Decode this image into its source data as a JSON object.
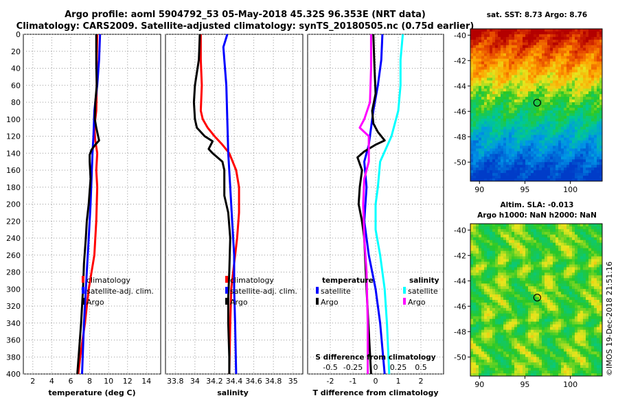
{
  "header": {
    "title_line1": "Argo profile: aoml 5904792_53 05-May-2018 45.32S 96.353E (NRT data)",
    "title_line2": "Climatology: CARS2009. Satellite-adjusted climatology: synTS_20180505.nc (0.75d earlier)"
  },
  "colors": {
    "climatology": "#ff0000",
    "satellite": "#0000ff",
    "argo": "#000000",
    "salinity_clim": "#00ffff",
    "salinity_argo": "#ff00ff"
  },
  "chart_data": [
    {
      "type": "line",
      "title": "",
      "xlabel": "temperature (deg C)",
      "ylabel": "",
      "xlim": [
        1,
        15.5
      ],
      "ylim": [
        400,
        0
      ],
      "xticks": [
        "2",
        "4",
        "6",
        "8",
        "10",
        "12",
        "14"
      ],
      "yticks": [
        "0",
        "20",
        "40",
        "60",
        "80",
        "100",
        "120",
        "140",
        "160",
        "180",
        "200",
        "220",
        "240",
        "260",
        "280",
        "300",
        "320",
        "340",
        "360",
        "380",
        "400"
      ],
      "series": [
        {
          "name": "climatology",
          "color": "#ff0000",
          "points": [
            [
              8.8,
              0
            ],
            [
              8.75,
              30
            ],
            [
              8.75,
              60
            ],
            [
              8.7,
              90
            ],
            [
              8.5,
              110
            ],
            [
              8.6,
              125
            ],
            [
              8.8,
              140
            ],
            [
              8.7,
              160
            ],
            [
              8.8,
              180
            ],
            [
              8.7,
              220
            ],
            [
              8.5,
              260
            ],
            [
              7.9,
              300
            ],
            [
              7.5,
              340
            ],
            [
              7.0,
              380
            ],
            [
              6.8,
              400
            ]
          ]
        },
        {
          "name": "satellite-adj. clim.",
          "color": "#0000ff",
          "points": [
            [
              9.1,
              0
            ],
            [
              9.0,
              30
            ],
            [
              8.8,
              60
            ],
            [
              8.5,
              90
            ],
            [
              8.4,
              120
            ],
            [
              8.3,
              140
            ],
            [
              8.2,
              170
            ],
            [
              8.1,
              200
            ],
            [
              7.9,
              240
            ],
            [
              7.6,
              300
            ],
            [
              7.4,
              340
            ],
            [
              7.2,
              400
            ]
          ]
        },
        {
          "name": "Argo",
          "color": "#000000",
          "points": [
            [
              8.7,
              0
            ],
            [
              8.7,
              35
            ],
            [
              8.75,
              60
            ],
            [
              8.6,
              80
            ],
            [
              8.55,
              100
            ],
            [
              8.7,
              110
            ],
            [
              9.0,
              125
            ],
            [
              8.6,
              130
            ],
            [
              8.2,
              136
            ],
            [
              8.0,
              142
            ],
            [
              8.0,
              150
            ],
            [
              8.1,
              170
            ],
            [
              7.9,
              200
            ],
            [
              7.7,
              220
            ],
            [
              7.6,
              240
            ],
            [
              7.4,
              270
            ],
            [
              7.3,
              300
            ],
            [
              7.1,
              340
            ],
            [
              6.9,
              370
            ],
            [
              6.7,
              400
            ]
          ]
        }
      ],
      "legend": [
        "climatology",
        "satellite-adj. clim.",
        "Argo"
      ],
      "legend_position": "lower-right"
    },
    {
      "type": "line",
      "xlabel": "salinity",
      "xlim": [
        33.7,
        35.1
      ],
      "ylim": [
        400,
        0
      ],
      "xticks": [
        "33.8",
        "34",
        "34.2",
        "34.4",
        "34.6",
        "34.8",
        "35"
      ],
      "series": [
        {
          "name": "climatology",
          "color": "#ff0000",
          "points": [
            [
              34.06,
              0
            ],
            [
              34.06,
              30
            ],
            [
              34.07,
              60
            ],
            [
              34.06,
              90
            ],
            [
              34.08,
              100
            ],
            [
              34.13,
              110
            ],
            [
              34.2,
              120
            ],
            [
              34.28,
              130
            ],
            [
              34.35,
              140
            ],
            [
              34.42,
              160
            ],
            [
              34.45,
              180
            ],
            [
              34.45,
              210
            ],
            [
              34.43,
              240
            ],
            [
              34.4,
              270
            ],
            [
              34.37,
              300
            ],
            [
              34.36,
              340
            ],
            [
              34.35,
              400
            ]
          ]
        },
        {
          "name": "satellite-adj. clim.",
          "color": "#0000ff",
          "points": [
            [
              34.33,
              0
            ],
            [
              34.29,
              15
            ],
            [
              34.3,
              30
            ],
            [
              34.32,
              60
            ],
            [
              34.33,
              100
            ],
            [
              34.34,
              140
            ],
            [
              34.36,
              180
            ],
            [
              34.38,
              220
            ],
            [
              34.4,
              260
            ],
            [
              34.4,
              300
            ],
            [
              34.41,
              340
            ],
            [
              34.42,
              400
            ]
          ]
        },
        {
          "name": "Argo",
          "color": "#000000",
          "points": [
            [
              34.05,
              0
            ],
            [
              34.04,
              30
            ],
            [
              34.0,
              60
            ],
            [
              33.99,
              80
            ],
            [
              34.0,
              100
            ],
            [
              34.02,
              110
            ],
            [
              34.1,
              120
            ],
            [
              34.18,
              126
            ],
            [
              34.14,
              135
            ],
            [
              34.18,
              140
            ],
            [
              34.28,
              150
            ],
            [
              34.3,
              160
            ],
            [
              34.3,
              190
            ],
            [
              34.34,
              210
            ],
            [
              34.36,
              240
            ],
            [
              34.35,
              280
            ],
            [
              34.34,
              310
            ],
            [
              34.34,
              340
            ],
            [
              34.35,
              380
            ],
            [
              34.35,
              400
            ]
          ]
        }
      ],
      "legend": [
        "climatology",
        "satellite-adj. clim.",
        "Argo"
      ],
      "legend_position": "lower-right"
    },
    {
      "type": "line",
      "xlabel": "T difference from climatology",
      "top_axis_label": "S difference from climatology",
      "xlim": [
        -3,
        3
      ],
      "ylim": [
        400,
        0
      ],
      "xticks": [
        "-2",
        "-1",
        "0",
        "1",
        "2"
      ],
      "top_xticks": [
        "-0.5",
        "-0.25",
        "0",
        "0.25",
        "0.5"
      ],
      "series": [
        {
          "name": "temperature satellite",
          "group": "temperature",
          "color": "#0000ff",
          "points": [
            [
              0.3,
              0
            ],
            [
              0.25,
              30
            ],
            [
              0.1,
              60
            ],
            [
              -0.1,
              90
            ],
            [
              -0.2,
              110
            ],
            [
              -0.3,
              130
            ],
            [
              -0.5,
              150
            ],
            [
              -0.4,
              180
            ],
            [
              -0.5,
              220
            ],
            [
              -0.3,
              260
            ],
            [
              0.0,
              300
            ],
            [
              0.2,
              340
            ],
            [
              0.4,
              400
            ]
          ]
        },
        {
          "name": "temperature Argo",
          "group": "temperature",
          "color": "#000000",
          "points": [
            [
              -0.1,
              0
            ],
            [
              -0.05,
              40
            ],
            [
              0.0,
              70
            ],
            [
              -0.15,
              90
            ],
            [
              -0.1,
              105
            ],
            [
              0.1,
              115
            ],
            [
              0.4,
              125
            ],
            [
              0.0,
              130
            ],
            [
              -0.5,
              138
            ],
            [
              -0.8,
              145
            ],
            [
              -0.6,
              160
            ],
            [
              -0.7,
              180
            ],
            [
              -0.75,
              200
            ],
            [
              -0.6,
              220
            ],
            [
              -0.5,
              240
            ],
            [
              -0.45,
              270
            ],
            [
              -0.4,
              300
            ],
            [
              -0.3,
              350
            ],
            [
              -0.2,
              400
            ]
          ]
        },
        {
          "name": "salinity satellite",
          "group": "salinity",
          "color": "#00ffff",
          "points": [
            [
              1.2,
              0
            ],
            [
              1.1,
              30
            ],
            [
              1.1,
              60
            ],
            [
              1.0,
              90
            ],
            [
              0.7,
              120
            ],
            [
              0.2,
              150
            ],
            [
              0.1,
              180
            ],
            [
              0.0,
              200
            ],
            [
              0.0,
              230
            ],
            [
              0.2,
              260
            ],
            [
              0.4,
              300
            ],
            [
              0.5,
              340
            ],
            [
              0.6,
              400
            ]
          ]
        },
        {
          "name": "salinity Argo",
          "group": "salinity",
          "color": "#ff00ff",
          "points": [
            [
              -0.2,
              0
            ],
            [
              -0.2,
              40
            ],
            [
              -0.25,
              80
            ],
            [
              -0.5,
              100
            ],
            [
              -0.7,
              110
            ],
            [
              -0.3,
              120
            ],
            [
              -0.3,
              150
            ],
            [
              -0.5,
              170
            ],
            [
              -0.55,
              200
            ],
            [
              -0.5,
              240
            ],
            [
              -0.4,
              280
            ],
            [
              -0.35,
              340
            ],
            [
              -0.35,
              400
            ]
          ]
        }
      ],
      "legend_temperature": {
        "title": "temperature",
        "items": [
          "satellite",
          "Argo"
        ]
      },
      "legend_salinity": {
        "title": "salinity",
        "items": [
          "satellite",
          "Argo"
        ]
      }
    },
    {
      "type": "heatmap",
      "title": "sat. SST: 8.73 Argo: 8.76",
      "xlim": [
        89,
        103.5
      ],
      "ylim": [
        -51.5,
        -39.5
      ],
      "xticks": [
        "90",
        "95",
        "100"
      ],
      "yticks": [
        "-40",
        "-42",
        "-44",
        "-46",
        "-48",
        "-50"
      ],
      "marker": {
        "x": 96.35,
        "y": -45.32
      }
    },
    {
      "type": "heatmap",
      "title_line1": "Altim. SLA: -0.013",
      "title_line2": "Argo h1000: NaN h2000: NaN",
      "xlim": [
        89,
        103.5
      ],
      "ylim": [
        -51.5,
        -39.5
      ],
      "xticks": [
        "90",
        "95",
        "100"
      ],
      "yticks": [
        "-40",
        "-42",
        "-44",
        "-46",
        "-48",
        "-50"
      ],
      "marker": {
        "x": 96.35,
        "y": -45.32
      }
    }
  ],
  "legend_labels": {
    "climatology": "climatology",
    "satellite_adj": "satellite-adj. clim.",
    "argo": "Argo",
    "temperature": "temperature",
    "salinity": "salinity",
    "satellite": "satellite"
  },
  "credit": "©IMOS 19-Dec-2018 21:51:16"
}
